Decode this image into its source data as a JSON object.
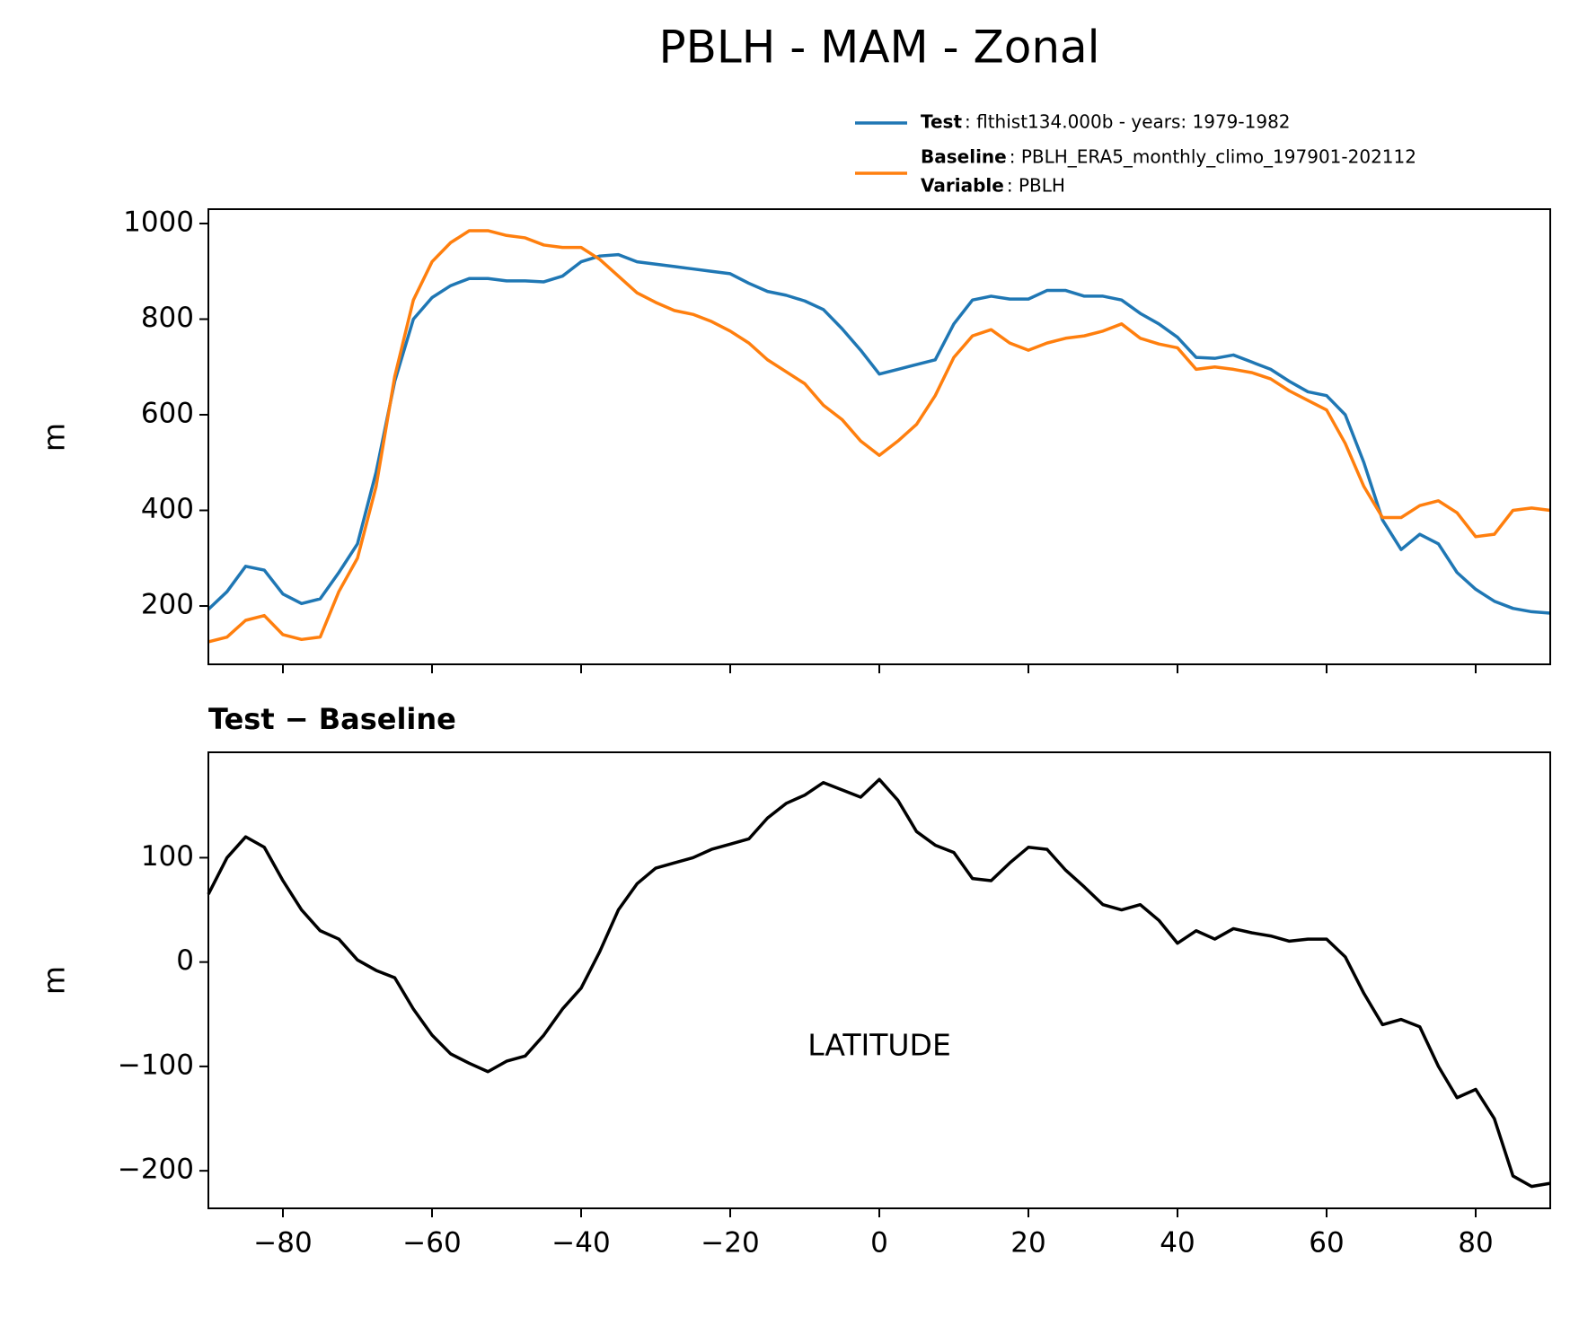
{
  "chart_data": [
    {
      "type": "line",
      "title": "PBLH - MAM - Zonal",
      "ylabel": "m",
      "x": [
        -90,
        -87.5,
        -85,
        -82.5,
        -80,
        -77.5,
        -75,
        -72.5,
        -70,
        -67.5,
        -65,
        -62.5,
        -60,
        -57.5,
        -55,
        -52.5,
        -50,
        -47.5,
        -45,
        -42.5,
        -40,
        -37.5,
        -35,
        -32.5,
        -30,
        -27.5,
        -25,
        -22.5,
        -20,
        -17.5,
        -15,
        -12.5,
        -10,
        -7.5,
        -5,
        -2.5,
        0,
        2.5,
        5,
        7.5,
        10,
        12.5,
        15,
        17.5,
        20,
        22.5,
        25,
        27.5,
        30,
        32.5,
        35,
        37.5,
        40,
        42.5,
        45,
        47.5,
        50,
        52.5,
        55,
        57.5,
        60,
        62.5,
        65,
        67.5,
        70,
        72.5,
        75,
        77.5,
        80,
        82.5,
        85,
        87.5,
        90
      ],
      "series": [
        {
          "name": "Test",
          "legend_text": ": flthist134.000b - years: 1979-1982",
          "color": "#1f77b4",
          "values": [
            193,
            230,
            283,
            275,
            225,
            205,
            215,
            270,
            330,
            480,
            670,
            800,
            845,
            870,
            885,
            885,
            880,
            880,
            878,
            890,
            920,
            932,
            935,
            920,
            915,
            910,
            905,
            900,
            895,
            875,
            858,
            850,
            838,
            820,
            780,
            735,
            685,
            695,
            705,
            715,
            790,
            840,
            848,
            842,
            842,
            860,
            860,
            848,
            848,
            840,
            812,
            790,
            762,
            720,
            718,
            725,
            710,
            695,
            670,
            648,
            640,
            600,
            500,
            380,
            318,
            350,
            330,
            270,
            235,
            210,
            195,
            188,
            185
          ]
        },
        {
          "name": "Baseline",
          "legend_text": ": PBLH_ERA5_monthly_climo_197901-202112",
          "color": "#ff7f0e",
          "values": [
            125,
            135,
            170,
            180,
            140,
            130,
            135,
            230,
            300,
            450,
            680,
            840,
            920,
            960,
            985,
            985,
            975,
            970,
            955,
            950,
            950,
            925,
            890,
            855,
            835,
            818,
            810,
            795,
            775,
            750,
            715,
            690,
            665,
            620,
            590,
            545,
            515,
            545,
            580,
            640,
            720,
            765,
            778,
            750,
            735,
            750,
            760,
            765,
            775,
            790,
            760,
            748,
            740,
            695,
            700,
            695,
            688,
            675,
            650,
            630,
            610,
            540,
            450,
            385,
            385,
            410,
            420,
            395,
            345,
            350,
            400,
            405,
            400
          ]
        }
      ],
      "legend_note": {
        "name": "Variable",
        "legend_text": ": PBLH"
      },
      "ylim": [
        78,
        1030
      ],
      "yticks": [
        200,
        400,
        600,
        800,
        1000
      ]
    },
    {
      "type": "line",
      "subtitle": "Test − Baseline",
      "ylabel": "m",
      "xlabel": "LATITUDE",
      "x": [
        -90,
        -87.5,
        -85,
        -82.5,
        -80,
        -77.5,
        -75,
        -72.5,
        -70,
        -67.5,
        -65,
        -62.5,
        -60,
        -57.5,
        -55,
        -52.5,
        -50,
        -47.5,
        -45,
        -42.5,
        -40,
        -37.5,
        -35,
        -32.5,
        -30,
        -27.5,
        -25,
        -22.5,
        -20,
        -17.5,
        -15,
        -12.5,
        -10,
        -7.5,
        -5,
        -2.5,
        0,
        2.5,
        5,
        7.5,
        10,
        12.5,
        15,
        17.5,
        20,
        22.5,
        25,
        27.5,
        30,
        32.5,
        35,
        37.5,
        40,
        42.5,
        45,
        47.5,
        50,
        52.5,
        55,
        57.5,
        60,
        62.5,
        65,
        67.5,
        70,
        72.5,
        75,
        77.5,
        80,
        82.5,
        85,
        87.5,
        90
      ],
      "color": "#000000",
      "values": [
        65,
        100,
        120,
        110,
        78,
        50,
        30,
        22,
        2,
        -8,
        -15,
        -45,
        -70,
        -88,
        -97,
        -105,
        -95,
        -90,
        -70,
        -45,
        -25,
        10,
        50,
        75,
        90,
        95,
        100,
        108,
        113,
        118,
        138,
        152,
        160,
        172,
        165,
        158,
        175,
        155,
        125,
        112,
        105,
        80,
        78,
        95,
        110,
        108,
        88,
        72,
        55,
        50,
        55,
        40,
        18,
        30,
        22,
        32,
        28,
        25,
        20,
        22,
        22,
        5,
        -30,
        -60,
        -55,
        -62,
        -100,
        -130,
        -122,
        -150,
        -205,
        -215,
        -212
      ],
      "xlim": [
        -90,
        90
      ],
      "xticks": [
        {
          "value": -80,
          "label": "−80"
        },
        {
          "value": -60,
          "label": "−60"
        },
        {
          "value": -40,
          "label": "−40"
        },
        {
          "value": -20,
          "label": "−20"
        },
        0,
        20,
        40,
        60,
        80
      ],
      "ylim": [
        -236,
        201
      ],
      "yticks": [
        {
          "value": -200,
          "label": "−200"
        },
        {
          "value": -100,
          "label": "−100"
        },
        0,
        100
      ]
    }
  ]
}
